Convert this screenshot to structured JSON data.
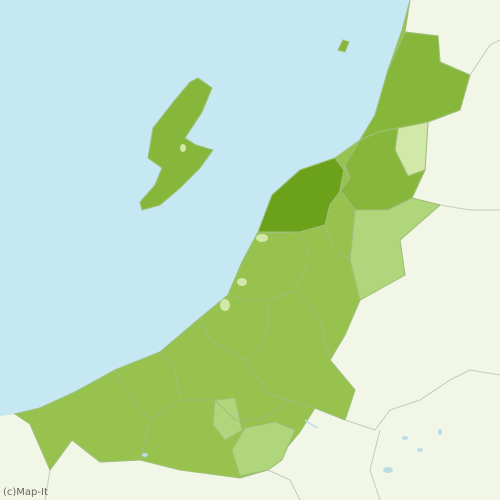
{
  "map": {
    "copyright": "(c)Map-It",
    "colors": {
      "sea": "#c5e8f3",
      "land": "#f1f6e6",
      "shade_darkest": "#6ba219",
      "shade_dark": "#87b73a",
      "shade_medium": "#97c24d",
      "shade_light": "#b0d67c",
      "shade_lightest": "#d2e8a8",
      "border": "#9fbf7a",
      "outside_border": "#c3cdb8",
      "water": "#b8dde8"
    },
    "regions": [
      {
        "name": "region-north",
        "shade": "shade_dark"
      },
      {
        "name": "region-north-inner",
        "shade": "shade_lightest"
      },
      {
        "name": "region-central-northeast",
        "shade": "shade_dark"
      },
      {
        "name": "region-east",
        "shade": "shade_light"
      },
      {
        "name": "region-niigata-city",
        "shade": "shade_darkest"
      },
      {
        "name": "region-central",
        "shade": "shade_medium"
      },
      {
        "name": "region-southwest",
        "shade": "shade_medium"
      },
      {
        "name": "region-south-small",
        "shade": "shade_light"
      },
      {
        "name": "region-south",
        "shade": "shade_light"
      },
      {
        "name": "sado-island",
        "shade": "shade_dark"
      },
      {
        "name": "awashima-island",
        "shade": "shade_dark"
      }
    ]
  }
}
